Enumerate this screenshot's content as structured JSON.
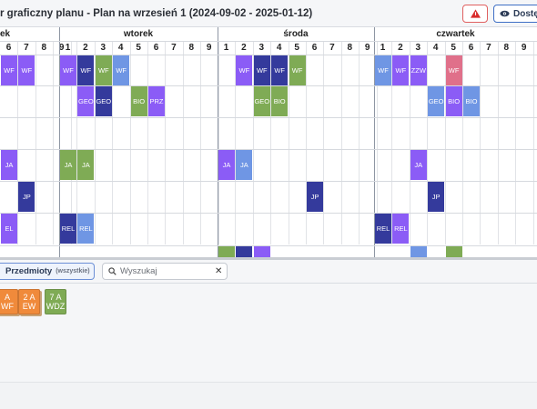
{
  "header": {
    "title": "r graficzny planu - Plan na wrzesień 1 (2024-09-02 - 2025-01-12)",
    "alert_icon": "warning-triangle-icon",
    "access_label": "Dostęp",
    "access_icon": "eye-icon"
  },
  "colors": {
    "purple": "#8b5cf6",
    "navy": "#343a9c",
    "green": "#7fab55",
    "blue": "#6f96e4",
    "pink": "#e0708a",
    "orange": "#f08a3b"
  },
  "days": [
    {
      "name": "ek",
      "periods": [
        "6",
        "7",
        "8",
        "9"
      ]
    },
    {
      "name": "wtorek",
      "periods": [
        "1",
        "2",
        "3",
        "4",
        "5",
        "6",
        "7",
        "8",
        "9"
      ]
    },
    {
      "name": "środa",
      "periods": [
        "1",
        "2",
        "3",
        "4",
        "5",
        "6",
        "7",
        "8",
        "9"
      ]
    },
    {
      "name": "czwartek",
      "periods": [
        "1",
        "2",
        "3",
        "4",
        "5",
        "6",
        "7",
        "8",
        "9"
      ]
    }
  ],
  "lessons": [
    {
      "day": 0,
      "period": 0,
      "row": 0,
      "label": "WF",
      "color": "purple"
    },
    {
      "day": 0,
      "period": 1,
      "row": 0,
      "label": "WF",
      "color": "purple"
    },
    {
      "day": 1,
      "period": 0,
      "row": 0,
      "label": "WF",
      "color": "purple"
    },
    {
      "day": 1,
      "period": 1,
      "row": 0,
      "label": "WF",
      "color": "navy"
    },
    {
      "day": 1,
      "period": 2,
      "row": 0,
      "label": "WF",
      "color": "green"
    },
    {
      "day": 1,
      "period": 3,
      "row": 0,
      "label": "WF",
      "color": "blue"
    },
    {
      "day": 2,
      "period": 1,
      "row": 0,
      "label": "WF",
      "color": "purple"
    },
    {
      "day": 2,
      "period": 2,
      "row": 0,
      "label": "WF",
      "color": "navy"
    },
    {
      "day": 2,
      "period": 3,
      "row": 0,
      "label": "WF",
      "color": "navy"
    },
    {
      "day": 2,
      "period": 4,
      "row": 0,
      "label": "WF",
      "color": "green"
    },
    {
      "day": 3,
      "period": 0,
      "row": 0,
      "label": "WF",
      "color": "blue"
    },
    {
      "day": 3,
      "period": 1,
      "row": 0,
      "label": "WF",
      "color": "purple"
    },
    {
      "day": 3,
      "period": 2,
      "row": 0,
      "label": "ZZW",
      "color": "purple"
    },
    {
      "day": 3,
      "period": 4,
      "row": 0,
      "label": "WF",
      "color": "pink"
    },
    {
      "day": 1,
      "period": 1,
      "row": 1,
      "label": "GEO",
      "color": "purple"
    },
    {
      "day": 1,
      "period": 2,
      "row": 1,
      "label": "GEO",
      "color": "navy"
    },
    {
      "day": 1,
      "period": 4,
      "row": 1,
      "label": "BIO",
      "color": "green"
    },
    {
      "day": 1,
      "period": 5,
      "row": 1,
      "label": "PRZ",
      "color": "purple"
    },
    {
      "day": 2,
      "period": 2,
      "row": 1,
      "label": "GEO",
      "color": "green"
    },
    {
      "day": 2,
      "period": 3,
      "row": 1,
      "label": "BIO",
      "color": "green"
    },
    {
      "day": 3,
      "period": 3,
      "row": 1,
      "label": "GEO",
      "color": "blue"
    },
    {
      "day": 3,
      "period": 4,
      "row": 1,
      "label": "BIO",
      "color": "purple"
    },
    {
      "day": 3,
      "period": 5,
      "row": 1,
      "label": "BIO",
      "color": "blue"
    },
    {
      "day": 0,
      "period": 0,
      "row": 3,
      "label": "JA",
      "color": "purple"
    },
    {
      "day": 1,
      "period": 0,
      "row": 3,
      "label": "JA",
      "color": "green"
    },
    {
      "day": 1,
      "period": 1,
      "row": 3,
      "label": "JA",
      "color": "green"
    },
    {
      "day": 2,
      "period": 0,
      "row": 3,
      "label": "JA",
      "color": "purple"
    },
    {
      "day": 2,
      "period": 1,
      "row": 3,
      "label": "JA",
      "color": "blue"
    },
    {
      "day": 3,
      "period": 2,
      "row": 3,
      "label": "JA",
      "color": "purple"
    },
    {
      "day": 0,
      "period": 1,
      "row": 4,
      "label": "JP",
      "color": "navy"
    },
    {
      "day": 2,
      "period": 5,
      "row": 4,
      "label": "JP",
      "color": "navy"
    },
    {
      "day": 3,
      "period": 3,
      "row": 4,
      "label": "JP",
      "color": "navy"
    },
    {
      "day": 0,
      "period": 0,
      "row": 5,
      "label": "EL",
      "color": "purple"
    },
    {
      "day": 1,
      "period": 0,
      "row": 5,
      "label": "REL",
      "color": "navy"
    },
    {
      "day": 1,
      "period": 1,
      "row": 5,
      "label": "REL",
      "color": "blue"
    },
    {
      "day": 3,
      "period": 0,
      "row": 5,
      "label": "REL",
      "color": "navy"
    },
    {
      "day": 3,
      "period": 1,
      "row": 5,
      "label": "REL",
      "color": "purple"
    }
  ],
  "filter": {
    "subjects_label": "Przedmioty",
    "subjects_hint": "(wszystkie)",
    "search_placeholder": "Wyszukaj",
    "search_value": "",
    "search_icon": "magnifier-icon",
    "clear_icon": "close-icon"
  },
  "pool_cards": [
    {
      "line1": "A",
      "line2": "WF",
      "color": "orange"
    },
    {
      "line1": "2 A",
      "line2": "EW",
      "color": "orange"
    },
    {
      "line1": "7 A",
      "line2": "WDZ",
      "color": "green"
    }
  ]
}
